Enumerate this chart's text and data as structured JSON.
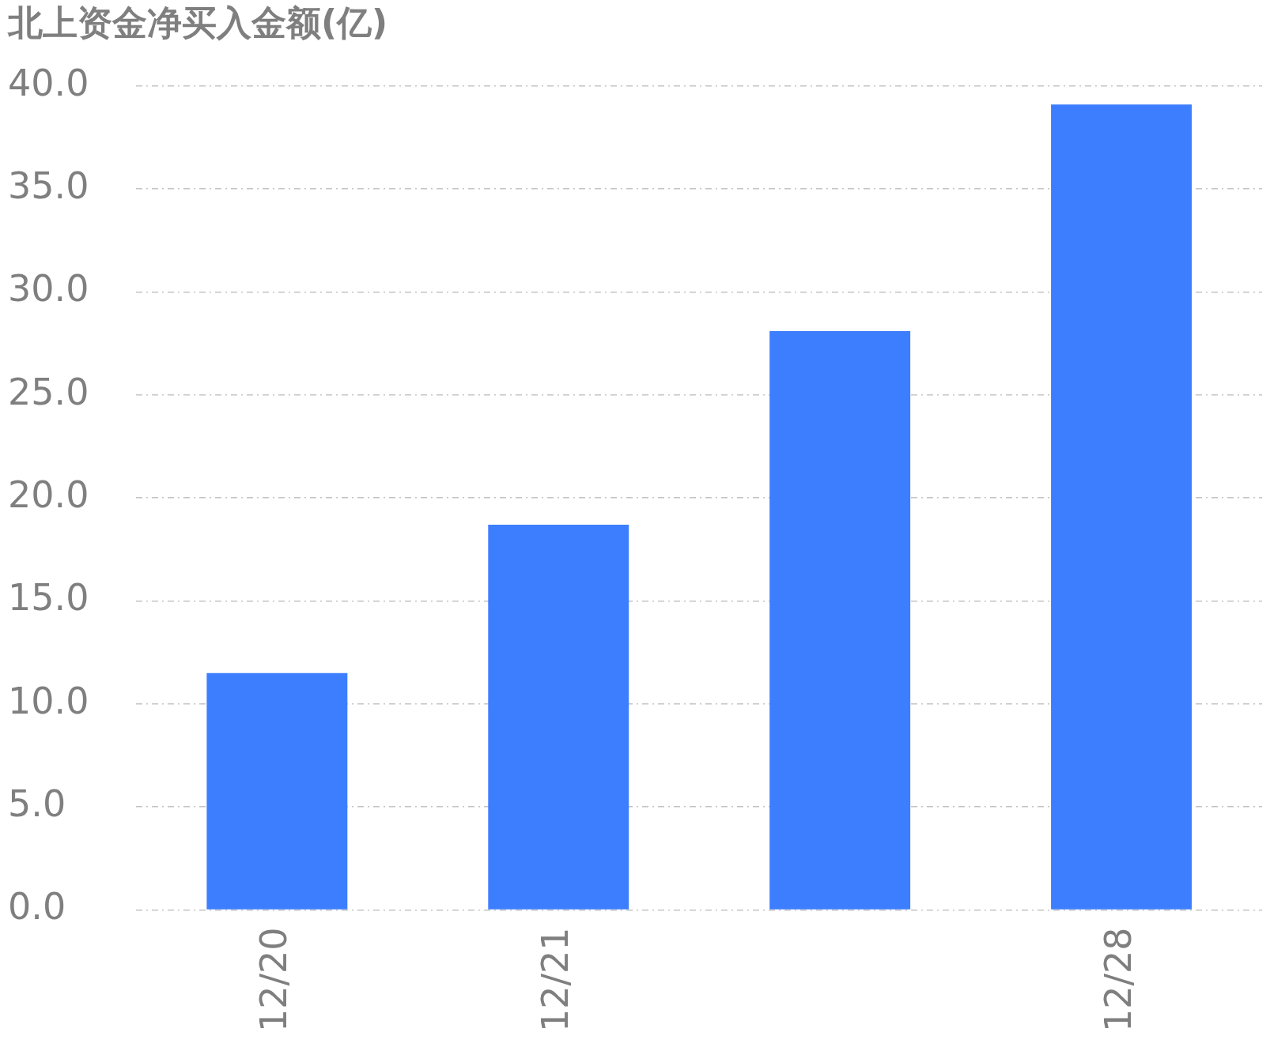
{
  "chart_data": {
    "type": "bar",
    "title": "北上资金净买入金额(亿)",
    "categories": [
      "12/20",
      "12/21",
      null,
      "12/28"
    ],
    "values": [
      11.5,
      18.7,
      28.1,
      39.1
    ],
    "color": "#3d7eff",
    "ylim": [
      0,
      40
    ],
    "yticks": [
      {
        "value": 0,
        "label": "0.0"
      },
      {
        "value": 5,
        "label": "5.0"
      },
      {
        "value": 10,
        "label": "10.0"
      },
      {
        "value": 15,
        "label": "15.0"
      },
      {
        "value": 20,
        "label": "20.0"
      },
      {
        "value": 25,
        "label": "25.0"
      },
      {
        "value": 30,
        "label": "30.0"
      },
      {
        "value": 35,
        "label": "35.0"
      },
      {
        "value": 40,
        "label": "40.0"
      }
    ],
    "grid": "y",
    "legend": false
  }
}
